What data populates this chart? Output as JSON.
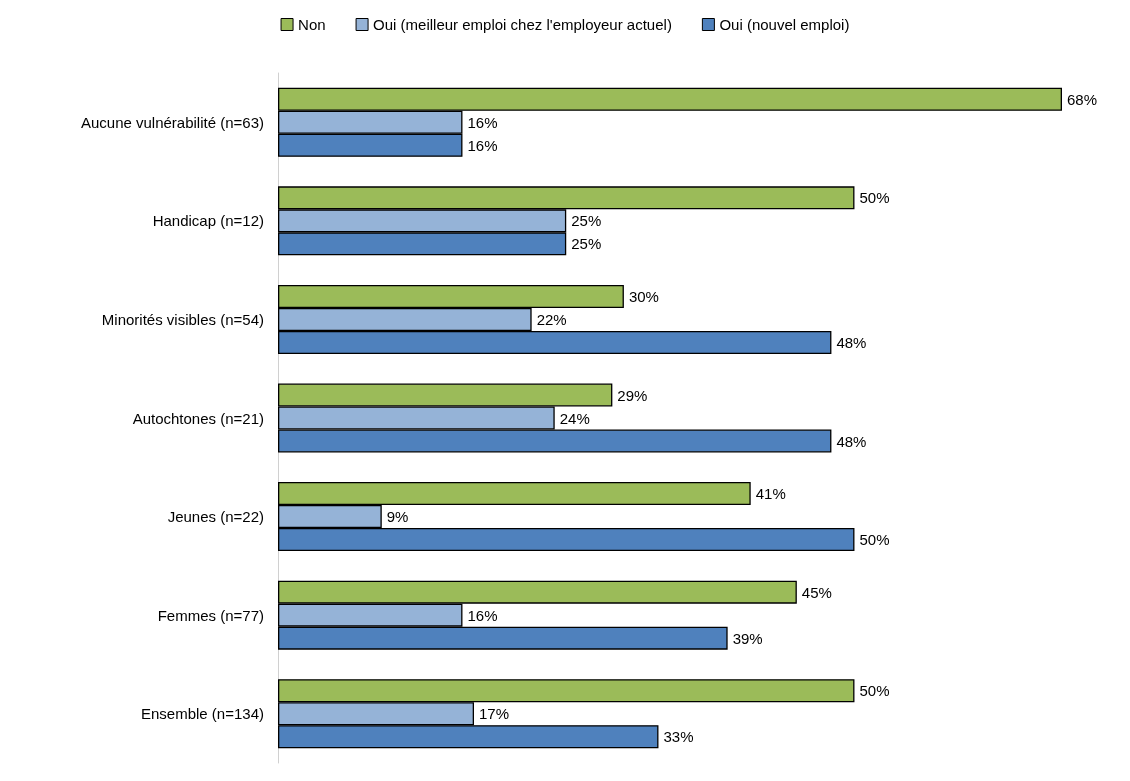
{
  "chart_data": {
    "type": "bar",
    "orientation": "horizontal",
    "tick_labels": "y",
    "legend": "top",
    "categories": [
      "Aucune vulnérabilité (n=63)",
      "Handicap (n=12)",
      "Minorités visibles (n=54)",
      "Autochtones (n=21)",
      "Jeunes (n=22)",
      "Femmes (n=77)",
      "Ensemble (n=134)"
    ],
    "series": [
      {
        "name": "Non",
        "color": "#9bbb59",
        "values": [
          68,
          50,
          30,
          29,
          41,
          45,
          50
        ],
        "value_labels": [
          "68%",
          "50%",
          "30%",
          "29%",
          "41%",
          "45%",
          "50%"
        ]
      },
      {
        "name": "Oui (meilleur emploi chez l'employeur actuel)",
        "color": "#95b3d7",
        "values": [
          16,
          25,
          22,
          24,
          9,
          16,
          17
        ],
        "value_labels": [
          "16%",
          "25%",
          "22%",
          "24%",
          "9%",
          "16%",
          "17%"
        ]
      },
      {
        "name": "Oui (nouvel emploi)",
        "color": "#4f81bd",
        "values": [
          16,
          25,
          48,
          48,
          50,
          39,
          33
        ],
        "value_labels": [
          "16%",
          "25%",
          "48%",
          "48%",
          "50%",
          "39%",
          "33%"
        ]
      }
    ]
  }
}
